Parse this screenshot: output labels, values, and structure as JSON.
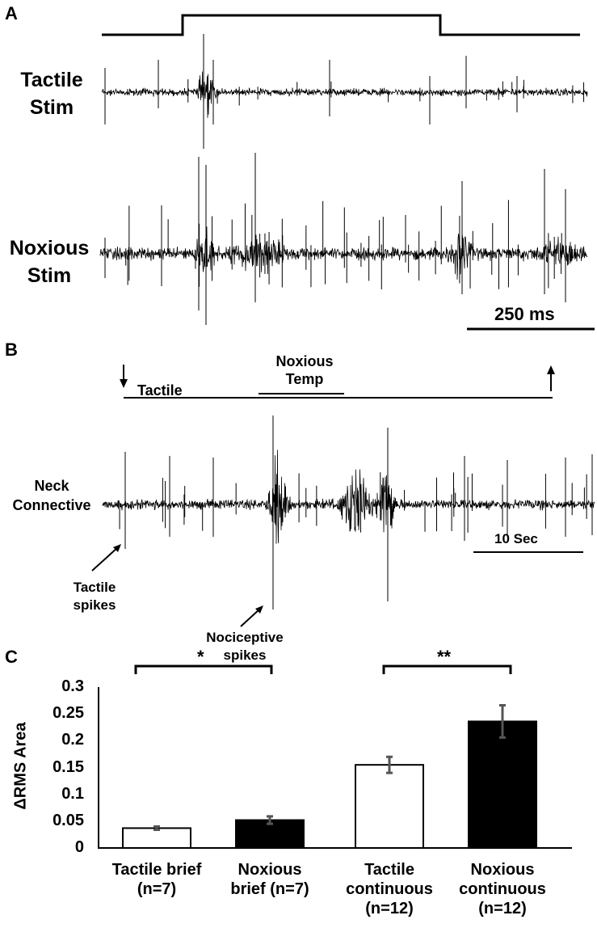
{
  "panels": {
    "a": {
      "letter": "A",
      "tactile_label_line1": "Tactile",
      "tactile_label_line2": "Stim",
      "noxious_label_line1": "Noxious",
      "noxious_label_line2": "Stim",
      "scale_bar": "250 ms"
    },
    "b": {
      "letter": "B",
      "noxious_temp_line1": "Noxious",
      "noxious_temp_line2": "Temp",
      "tactile": "Tactile",
      "trace_label_line1": "Neck",
      "trace_label_line2": "Connective",
      "tactile_spikes_line1": "Tactile",
      "tactile_spikes_line2": "spikes",
      "nociceptive_spikes_line1": "Nociceptive",
      "nociceptive_spikes_line2": "spikes",
      "scale_bar": "10 Sec"
    },
    "c": {
      "letter": "C",
      "sig1": "*",
      "sig2": "**"
    }
  },
  "chart_data": {
    "type": "bar",
    "ylabel": "ΔRMS Area",
    "ylim": [
      0,
      0.3
    ],
    "yticks": [
      "0",
      "0.05",
      "0.1",
      "0.15",
      "0.2",
      "0.25",
      "0.3"
    ],
    "categories": [
      [
        "Tactile brief",
        "(n=7)"
      ],
      [
        "Noxious",
        "brief (n=7)"
      ],
      [
        "Tactile",
        "continuous",
        "(n=12)"
      ],
      [
        "Noxious",
        "continuous",
        "(n=12)"
      ]
    ],
    "values": [
      0.037,
      0.052,
      0.155,
      0.236
    ],
    "errors": [
      0.003,
      0.007,
      0.015,
      0.03
    ],
    "bar_colors": [
      "#ffffff",
      "#000000",
      "#ffffff",
      "#000000"
    ],
    "error_color": "#555555"
  }
}
